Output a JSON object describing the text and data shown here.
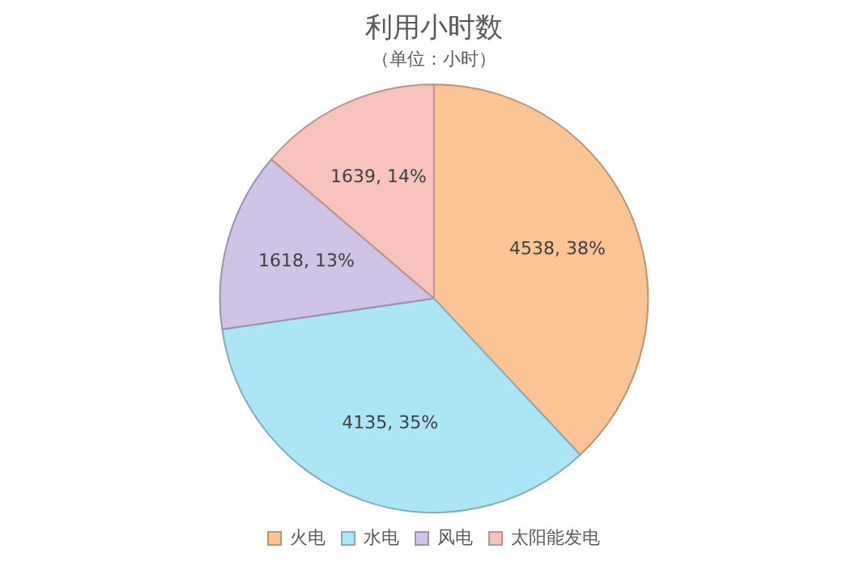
{
  "chart_data": {
    "type": "pie",
    "title": "利用小时数",
    "subtitle": "（单位：小时）",
    "categories": [
      "火电",
      "水电",
      "风电",
      "太阳能发电"
    ],
    "values": [
      4538,
      4135,
      1618,
      1639
    ],
    "colors": [
      "#fbc494",
      "#ace6f6",
      "#cfc3e6",
      "#f6c4bc"
    ],
    "value_labels": [
      "4538, 38%",
      "4135, 35%",
      "1618, 13%",
      "1639, 14%"
    ],
    "legend": "bottom"
  }
}
